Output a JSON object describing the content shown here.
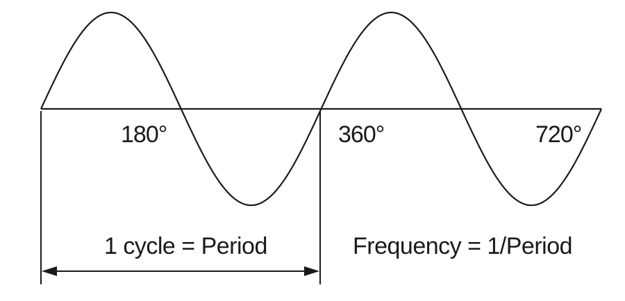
{
  "diagram": {
    "angle_labels": [
      "180°",
      "360°",
      "720°"
    ],
    "cycle_label": "1 cycle = Period",
    "frequency_label": "Frequency = 1/Period",
    "stroke_color": "#1a1a1a"
  }
}
